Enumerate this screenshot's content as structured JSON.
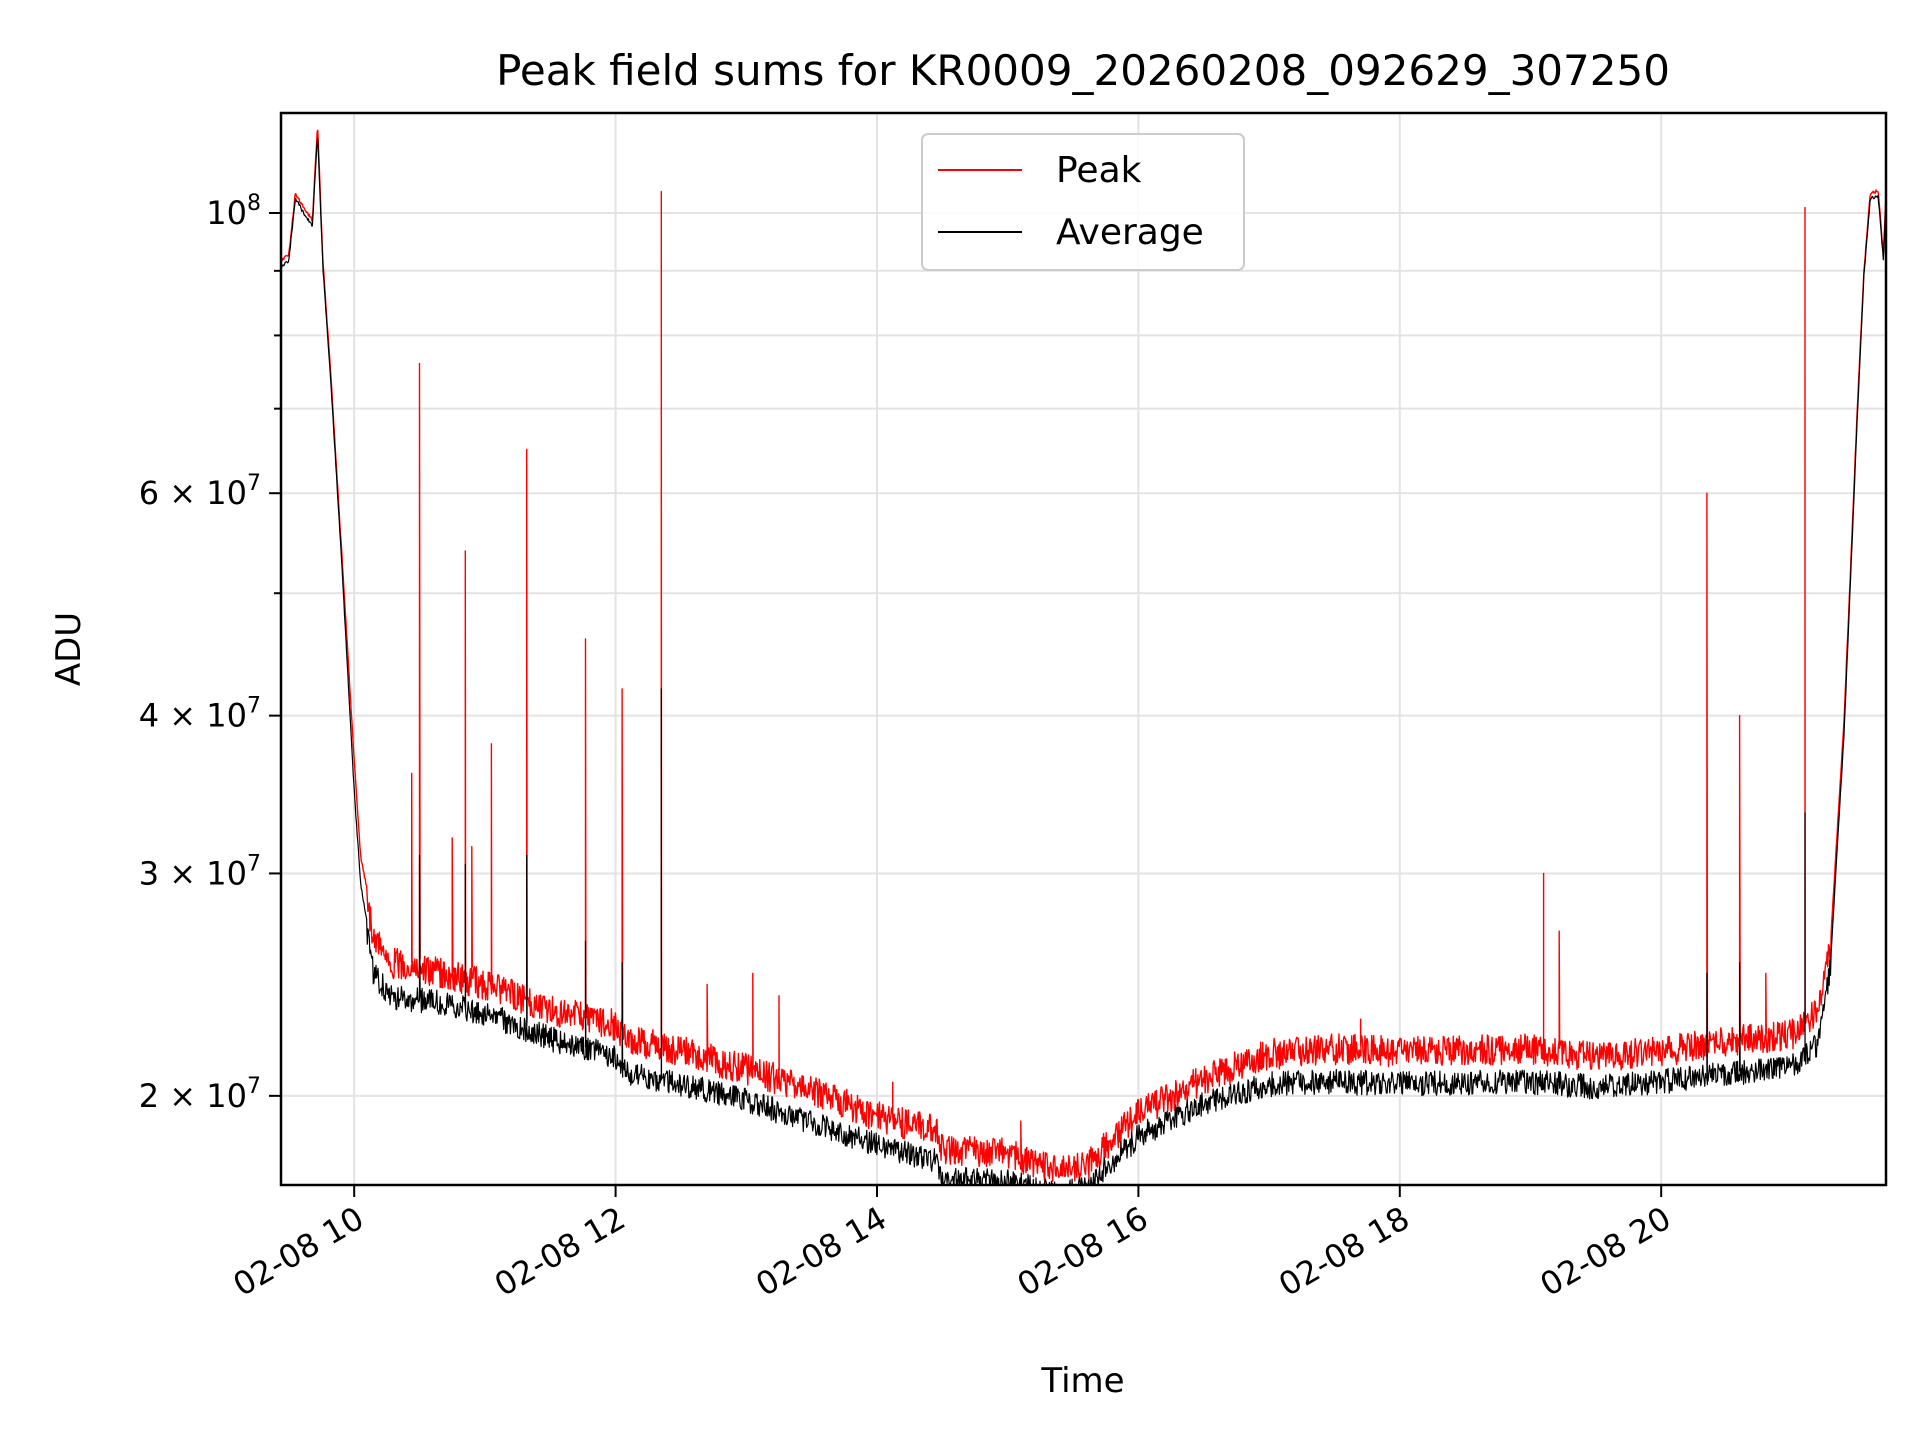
{
  "chart_data": {
    "type": "line",
    "title": "Peak field sums for KR0009_20260208_092629_307250",
    "xlabel": "Time",
    "ylabel": "ADU",
    "y_scale": "log",
    "ylim": [
      17000000,
      120000000
    ],
    "xlim_hours": [
      9.44,
      21.72
    ],
    "grid": true,
    "legend_position": "upper center",
    "x_ticks": [
      {
        "hour": 10,
        "label": "02-08 10"
      },
      {
        "hour": 12,
        "label": "02-08 12"
      },
      {
        "hour": 14,
        "label": "02-08 14"
      },
      {
        "hour": 16,
        "label": "02-08 16"
      },
      {
        "hour": 18,
        "label": "02-08 18"
      },
      {
        "hour": 20,
        "label": "02-08 20"
      }
    ],
    "y_major_ticks": [
      {
        "value": 20000000,
        "coef": "2",
        "exp": "7"
      },
      {
        "value": 30000000,
        "coef": "3",
        "exp": "7"
      },
      {
        "value": 40000000,
        "coef": "4",
        "exp": "7"
      },
      {
        "value": 60000000,
        "coef": "6",
        "exp": "7"
      },
      {
        "value": 100000000,
        "coef": "",
        "exp": "8"
      }
    ],
    "y_minor_ticks": [
      50000000,
      70000000,
      80000000,
      90000000
    ],
    "series": [
      {
        "name": "Peak",
        "color": "#ff0000",
        "baseline": [
          [
            9.44,
            92000000
          ],
          [
            9.5,
            93000000
          ],
          [
            9.55,
            104000000
          ],
          [
            9.62,
            101000000
          ],
          [
            9.68,
            99000000
          ],
          [
            9.72,
            118000000
          ],
          [
            9.76,
            92000000
          ],
          [
            9.82,
            75000000
          ],
          [
            9.9,
            55000000
          ],
          [
            10.0,
            37000000
          ],
          [
            10.05,
            31000000
          ],
          [
            10.15,
            27500000
          ],
          [
            10.3,
            26200000
          ],
          [
            10.6,
            25800000
          ],
          [
            11.0,
            25200000
          ],
          [
            11.5,
            24100000
          ],
          [
            12.0,
            23400000
          ],
          [
            12.1,
            22800000
          ],
          [
            12.5,
            22300000
          ],
          [
            13.0,
            21600000
          ],
          [
            13.5,
            20800000
          ],
          [
            14.0,
            19800000
          ],
          [
            14.45,
            19300000
          ],
          [
            14.5,
            18700000
          ],
          [
            15.0,
            18500000
          ],
          [
            15.4,
            17900000
          ],
          [
            15.6,
            18100000
          ],
          [
            16.0,
            19900000
          ],
          [
            16.5,
            21200000
          ],
          [
            17.0,
            22200000
          ],
          [
            17.5,
            22400000
          ],
          [
            18.0,
            22300000
          ],
          [
            19.0,
            22400000
          ],
          [
            19.5,
            22100000
          ],
          [
            20.0,
            22300000
          ],
          [
            20.5,
            22700000
          ],
          [
            21.0,
            23000000
          ],
          [
            21.2,
            24000000
          ],
          [
            21.3,
            27000000
          ],
          [
            21.4,
            40000000
          ],
          [
            21.5,
            70000000
          ],
          [
            21.55,
            90000000
          ],
          [
            21.6,
            104000000
          ],
          [
            21.66,
            104500000
          ],
          [
            21.7,
            93000000
          ],
          [
            21.72,
            104000000
          ]
        ],
        "noise": 0.055,
        "spikes": [
          [
            10.44,
            36000000
          ],
          [
            10.5,
            76000000
          ],
          [
            10.75,
            32000000
          ],
          [
            10.85,
            54000000
          ],
          [
            10.9,
            31500000
          ],
          [
            11.05,
            38000000
          ],
          [
            11.32,
            65000000
          ],
          [
            11.77,
            46000000
          ],
          [
            12.05,
            42000000
          ],
          [
            12.35,
            104000000
          ],
          [
            12.7,
            24500000
          ],
          [
            13.05,
            25000000
          ],
          [
            13.25,
            24000000
          ],
          [
            14.12,
            20500000
          ],
          [
            15.1,
            19100000
          ],
          [
            17.7,
            23000000
          ],
          [
            19.1,
            30000000
          ],
          [
            19.22,
            27000000
          ],
          [
            20.35,
            60000000
          ],
          [
            20.6,
            40000000
          ],
          [
            20.8,
            25000000
          ],
          [
            21.1,
            101000000
          ]
        ]
      },
      {
        "name": "Average",
        "color": "#000000",
        "baseline": [
          [
            9.44,
            91000000
          ],
          [
            9.5,
            92000000
          ],
          [
            9.55,
            103000000
          ],
          [
            9.62,
            100000000
          ],
          [
            9.68,
            98000000
          ],
          [
            9.72,
            116000000
          ],
          [
            9.76,
            91000000
          ],
          [
            9.82,
            74000000
          ],
          [
            9.9,
            54000000
          ],
          [
            10.0,
            35000000
          ],
          [
            10.05,
            29500000
          ],
          [
            10.15,
            25500000
          ],
          [
            10.3,
            24500000
          ],
          [
            10.6,
            24300000
          ],
          [
            11.0,
            23800000
          ],
          [
            11.5,
            22700000
          ],
          [
            12.0,
            22000000
          ],
          [
            12.1,
            21300000
          ],
          [
            12.5,
            20900000
          ],
          [
            13.0,
            20300000
          ],
          [
            13.5,
            19500000
          ],
          [
            14.0,
            18700000
          ],
          [
            14.45,
            18200000
          ],
          [
            14.5,
            17600000
          ],
          [
            15.0,
            17500000
          ],
          [
            15.4,
            17100000
          ],
          [
            15.6,
            17300000
          ],
          [
            16.0,
            19000000
          ],
          [
            16.5,
            20200000
          ],
          [
            17.0,
            20900000
          ],
          [
            17.5,
            21000000
          ],
          [
            18.0,
            20900000
          ],
          [
            19.0,
            21000000
          ],
          [
            19.5,
            20800000
          ],
          [
            20.0,
            21000000
          ],
          [
            20.5,
            21300000
          ],
          [
            21.0,
            21600000
          ],
          [
            21.2,
            22500000
          ],
          [
            21.3,
            26000000
          ],
          [
            21.4,
            39000000
          ],
          [
            21.5,
            69000000
          ],
          [
            21.55,
            89000000
          ],
          [
            21.6,
            103000000
          ],
          [
            21.66,
            103500000
          ],
          [
            21.7,
            92000000
          ],
          [
            21.72,
            103000000
          ]
        ],
        "noise": 0.045,
        "spikes": [
          [
            10.5,
            31000000
          ],
          [
            10.85,
            30500000
          ],
          [
            11.32,
            31000000
          ],
          [
            11.77,
            26500000
          ],
          [
            12.05,
            25500000
          ],
          [
            12.35,
            42000000
          ],
          [
            20.35,
            25000000
          ],
          [
            20.6,
            25500000
          ],
          [
            21.1,
            33500000
          ]
        ]
      }
    ]
  }
}
